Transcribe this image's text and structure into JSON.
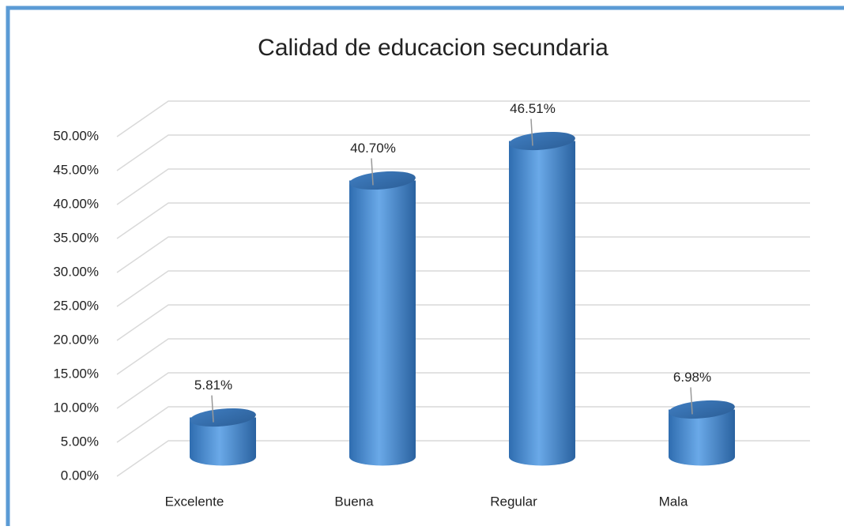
{
  "chart_data": {
    "type": "bar",
    "title": "Calidad de educacion secundaria",
    "categories": [
      "Excelente",
      "Buena",
      "Regular",
      "Mala"
    ],
    "values": [
      5.81,
      40.7,
      46.51,
      6.98
    ],
    "value_labels": [
      "5.81%",
      "40.70%",
      "46.51%",
      "6.98%"
    ],
    "color": "#4a8fd6",
    "ylim": [
      0,
      50
    ],
    "yticks": [
      {
        "value": 0,
        "label": "0.00%"
      },
      {
        "value": 5,
        "label": "5.00%"
      },
      {
        "value": 10,
        "label": "10.00%"
      },
      {
        "value": 15,
        "label": "15.00%"
      },
      {
        "value": 20,
        "label": "20.00%"
      },
      {
        "value": 25,
        "label": "25.00%"
      },
      {
        "value": 30,
        "label": "30.00%"
      },
      {
        "value": 35,
        "label": "35.00%"
      },
      {
        "value": 40,
        "label": "40.00%"
      },
      {
        "value": 45,
        "label": "45.00%"
      },
      {
        "value": 50,
        "label": "50.00%"
      }
    ],
    "grid": true
  }
}
